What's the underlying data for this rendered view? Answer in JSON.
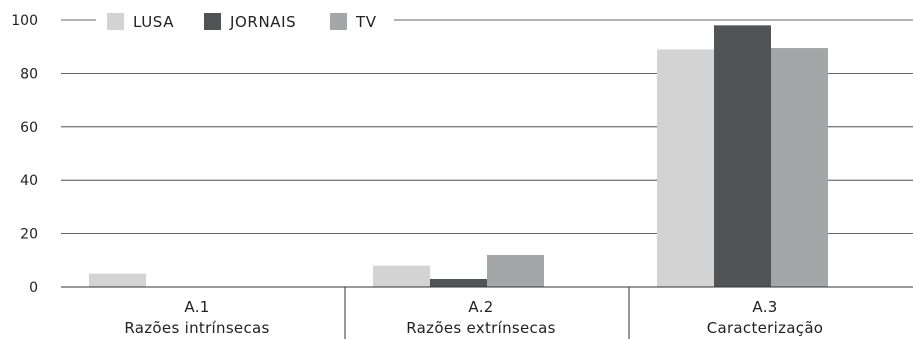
{
  "chart_data": {
    "type": "bar",
    "categories": [
      {
        "code": "A.1",
        "label": "Razões intrínsecas"
      },
      {
        "code": "A.2",
        "label": "Razões extrínsecas"
      },
      {
        "code": "A.3",
        "label": "Caracterização"
      }
    ],
    "series": [
      {
        "name": "LUSA",
        "color": "#d3d3d3",
        "values": [
          5,
          8,
          89
        ]
      },
      {
        "name": "JORNAIS",
        "color": "#525355",
        "values": [
          0,
          3,
          98
        ]
      },
      {
        "name": "TV",
        "color": "#a5a6a8",
        "values": [
          0,
          12,
          89.5
        ]
      }
    ],
    "yticks": [
      0,
      20,
      40,
      60,
      80,
      100
    ],
    "ylim": [
      0,
      100
    ],
    "grid": true,
    "legend": "top-left"
  }
}
